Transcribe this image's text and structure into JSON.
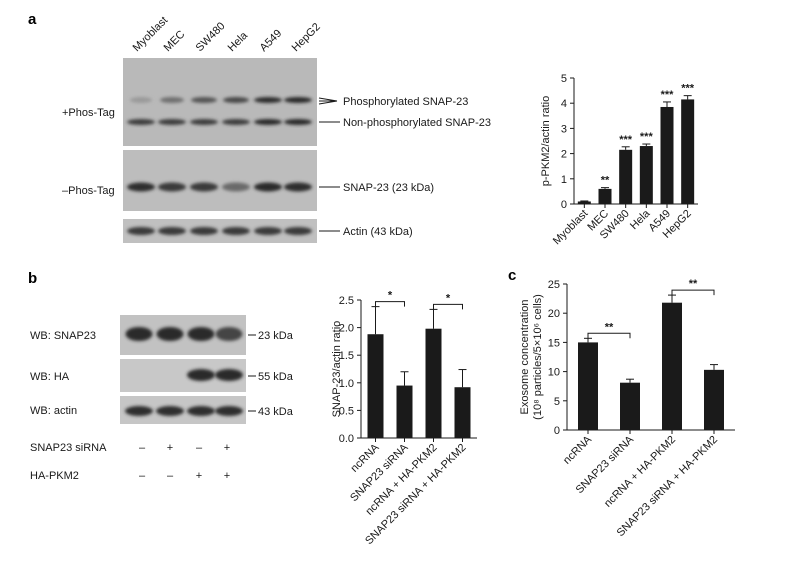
{
  "panel_a": {
    "letter": "a",
    "cell_lines": [
      "Myoblast",
      "MEC",
      "SW480",
      "Hela",
      "A549",
      "HepG2"
    ],
    "row_labels": {
      "phos_tag_plus": "+Phos-Tag",
      "phos_tag_minus": "–Phos-Tag"
    },
    "band_labels": {
      "phosphorylated": "Phosphorylated SNAP-23",
      "non_phosphorylated": "Non-phosphorylated SNAP-23",
      "snap23": "SNAP-23 (23 kDa)",
      "actin": "Actin (43 kDa)"
    }
  },
  "panel_b": {
    "letter": "b",
    "wb_labels": [
      "WB: SNAP23",
      "WB: HA",
      "WB: actin"
    ],
    "kda_labels": [
      "23 kDa",
      "55 kDa",
      "43 kDa"
    ],
    "treatment_rows": [
      {
        "label": "SNAP23 siRNA",
        "signs": [
          "–",
          "+",
          "–",
          "+"
        ]
      },
      {
        "label": "HA-PKM2",
        "signs": [
          "–",
          "–",
          "+",
          "+"
        ]
      }
    ]
  },
  "panel_c": {
    "letter": "c"
  },
  "chart_data": [
    {
      "id": "a",
      "type": "bar",
      "categories": [
        "Myoblast",
        "MEC",
        "SW480",
        "Hela",
        "A549",
        "HepG2"
      ],
      "values": [
        0.1,
        0.6,
        2.15,
        2.3,
        3.85,
        4.15
      ],
      "errors": [
        0.02,
        0.05,
        0.12,
        0.08,
        0.2,
        0.15
      ],
      "significance": [
        "",
        "**",
        "***",
        "***",
        "***",
        "***"
      ],
      "ylabel": "p-PKM2/actin ratio",
      "ylim": [
        0,
        5
      ],
      "yticks": [
        0,
        1,
        2,
        3,
        4,
        5
      ]
    },
    {
      "id": "b",
      "type": "bar",
      "categories": [
        "ncRNA",
        "SNAP23 siRNA",
        "ncRNA + HA-PKM2",
        "SNAP23 siRNA + HA-PKM2"
      ],
      "values": [
        1.88,
        0.95,
        1.98,
        0.92
      ],
      "errors": [
        0.5,
        0.25,
        0.35,
        0.32
      ],
      "comparisons": [
        {
          "from": 0,
          "to": 1,
          "label": "*"
        },
        {
          "from": 2,
          "to": 3,
          "label": "*"
        }
      ],
      "ylabel": "SNAP-23/actin ratio",
      "ylim": [
        0,
        2.5
      ],
      "yticks": [
        "0.0",
        "0.5",
        "1.0",
        "1.5",
        "2.0",
        "2.5"
      ]
    },
    {
      "id": "c",
      "type": "bar",
      "categories": [
        "ncRNA",
        "SNAP23 siRNA",
        "ncRNA + HA-PKM2",
        "SNAP23 siRNA + HA-PKM2"
      ],
      "values": [
        15.0,
        8.1,
        21.8,
        10.3
      ],
      "errors": [
        0.7,
        0.6,
        1.3,
        0.9
      ],
      "comparisons": [
        {
          "from": 0,
          "to": 1,
          "label": "**"
        },
        {
          "from": 2,
          "to": 3,
          "label": "**"
        }
      ],
      "ylabel": "Exosome concentration",
      "ylabel2": "(10⁸ particles/5×10⁶ cells)",
      "ylim": [
        0,
        25
      ],
      "yticks": [
        0,
        5,
        10,
        15,
        20,
        25
      ]
    }
  ]
}
